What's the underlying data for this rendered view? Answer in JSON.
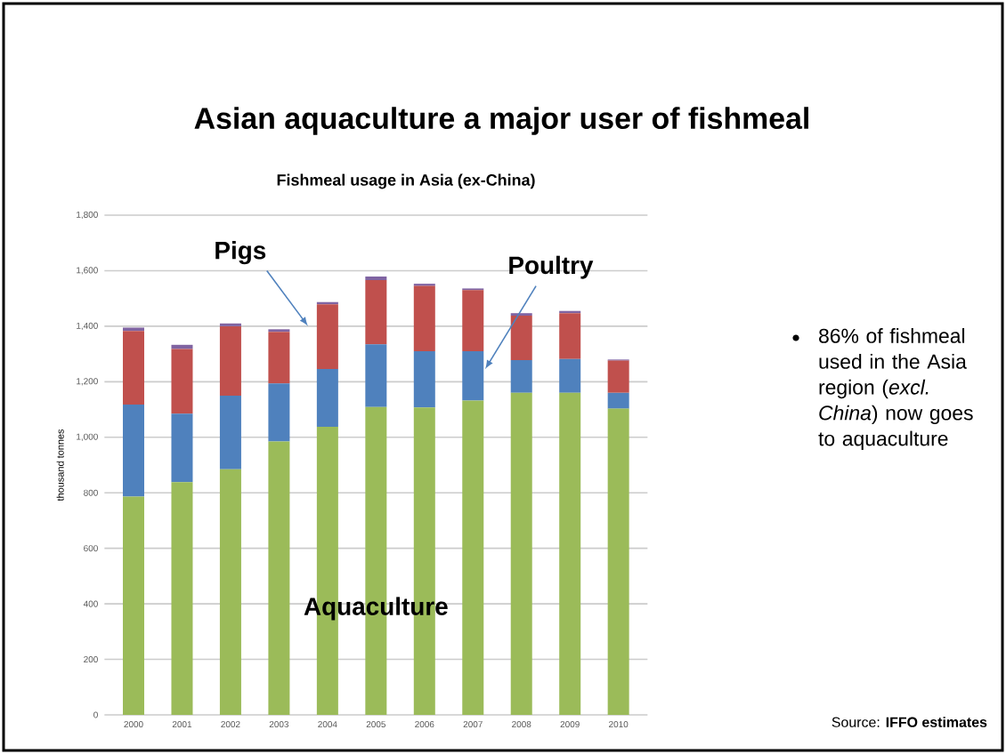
{
  "chart_data": {
    "type": "bar",
    "stacked": true,
    "title": "Asian aquaculture a major user of fishmeal",
    "subtitle": "Fishmeal usage in Asia (ex-China)",
    "ylabel": "thousand tonnes",
    "categories": [
      "2000",
      "2001",
      "2002",
      "2003",
      "2004",
      "2005",
      "2006",
      "2007",
      "2008",
      "2009",
      "2010"
    ],
    "series": [
      {
        "name": "Aquaculture",
        "color": "#9bbb59",
        "values": [
          786,
          838,
          885,
          985,
          1038,
          1109,
          1107,
          1132,
          1160,
          1160,
          1103
        ]
      },
      {
        "name": "Poultry",
        "color": "#4f81bd",
        "values": [
          332,
          247,
          265,
          209,
          208,
          226,
          203,
          178,
          118,
          122,
          57
        ]
      },
      {
        "name": "Pigs",
        "color": "#c0504d",
        "values": [
          265,
          233,
          250,
          186,
          233,
          231,
          235,
          220,
          160,
          165,
          116
        ]
      },
      {
        "color": "#8064a2",
        "values": [
          12,
          15,
          10,
          9,
          8,
          13,
          8,
          6,
          9,
          8,
          4
        ]
      }
    ],
    "ylim": [
      0,
      1800
    ],
    "yticks": [
      0,
      200,
      400,
      600,
      800,
      {
        "value": 1000,
        "label": "1,000"
      },
      {
        "value": 1200,
        "label": "1,200"
      },
      {
        "value": 1400,
        "label": "1,400"
      },
      {
        "value": 1600,
        "label": "1,600"
      },
      {
        "value": 1800,
        "label": "1,800"
      }
    ],
    "grid": "y",
    "annotations": [
      "86% of fishmeal used in the Asia region (*excl. China*) now goes to aquaculture",
      "Source: **IFFO estimates**"
    ]
  }
}
